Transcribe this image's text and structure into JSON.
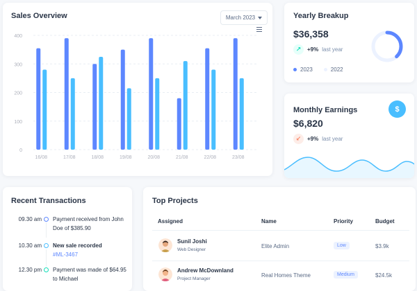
{
  "sales": {
    "title": "Sales Overview",
    "period": "March 2023",
    "chart_data": {
      "type": "bar",
      "categories": [
        "16/08",
        "17/08",
        "18/08",
        "19/08",
        "20/08",
        "21/08",
        "22/08",
        "23/08"
      ],
      "series": [
        {
          "values": [
            355,
            390,
            300,
            350,
            390,
            180,
            355,
            390
          ]
        },
        {
          "values": [
            280,
            250,
            325,
            215,
            250,
            310,
            280,
            250
          ]
        }
      ],
      "yticks": [
        0,
        100,
        200,
        300,
        400
      ],
      "ylim": [
        0,
        400
      ],
      "colors": [
        "#5d87ff",
        "#49beff"
      ],
      "grid": true
    }
  },
  "yearly": {
    "title": "Yearly Breakup",
    "amount": "$36,358",
    "change": "+9%",
    "change_label": "last year",
    "legend": [
      "2023",
      "2022"
    ],
    "donut_fill": 0.38,
    "colors": {
      "primary": "#5d87ff",
      "light": "#ecf2ff",
      "accent": "#13deb9"
    }
  },
  "monthly": {
    "title": "Monthly Earnings",
    "amount": "$6,820",
    "change": "+9%",
    "change_label": "last year",
    "icon": "dollar-icon",
    "icon_glyph": "$"
  },
  "recent": {
    "title": "Recent Transactions",
    "items": [
      {
        "time": "09.30 am",
        "text": "Payment received from John Doe of $385.90",
        "bold": false,
        "link": ""
      },
      {
        "time": "10.30 am",
        "text": "New sale recorded",
        "bold": true,
        "link": "#ML-3467"
      },
      {
        "time": "12.30 pm",
        "text": "Payment was made of $64.95 to Michael",
        "bold": false,
        "link": ""
      }
    ]
  },
  "projects": {
    "title": "Top Projects",
    "columns": [
      "Assigned",
      "Name",
      "Priority",
      "Budget"
    ],
    "rows": [
      {
        "name": "Sunil Joshi",
        "role": "Web Designer",
        "project": "Elite Admin",
        "priority": "Low",
        "budget": "$3.9k"
      },
      {
        "name": "Andrew McDownland",
        "role": "Project Manager",
        "project": "Real Homes Theme",
        "priority": "Medium",
        "budget": "$24.5k"
      }
    ]
  }
}
